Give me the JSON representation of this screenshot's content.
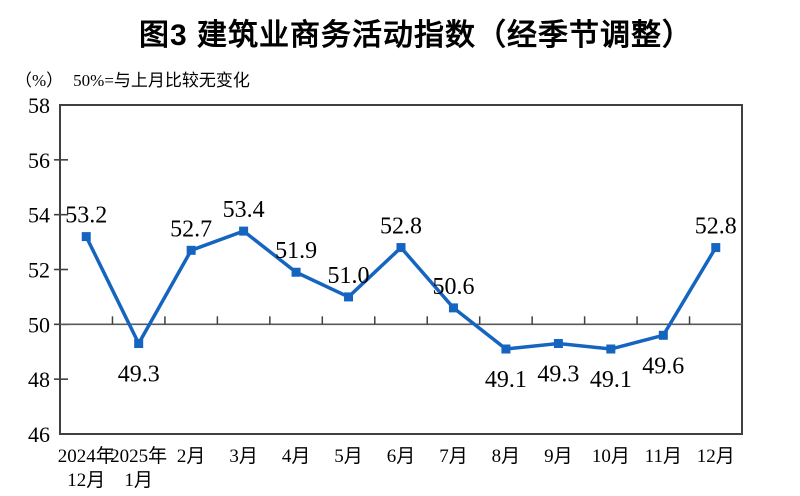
{
  "title": "图3  建筑业商务活动指数（经季节调整）",
  "subtitle": {
    "unit": "（%）",
    "note": "50%=与上月比较无变化"
  },
  "style": {
    "line_color": "#1565C0",
    "marker_color": "#1565C0",
    "axis_color": "#404040",
    "refline_color": "#595959",
    "text_color": "#000000",
    "background": "#ffffff"
  },
  "chart_data": {
    "type": "line",
    "title": "图3  建筑业商务活动指数（经季节调整）",
    "xlabel": "",
    "ylabel": "（%）",
    "categories": [
      "2024年\n12月",
      "2025年\n1月",
      "2月",
      "3月",
      "4月",
      "5月",
      "6月",
      "7月",
      "8月",
      "9月",
      "10月",
      "11月",
      "12月"
    ],
    "series": [
      {
        "name": "建筑业商务活动指数",
        "values": [
          53.2,
          49.3,
          52.7,
          53.4,
          51.9,
          51.0,
          52.8,
          50.6,
          49.1,
          49.3,
          49.1,
          49.6,
          52.8
        ]
      }
    ],
    "label_positions": [
      "above",
      "below",
      "above",
      "above",
      "above",
      "above",
      "above",
      "above",
      "below",
      "below",
      "below",
      "below",
      "above"
    ],
    "ylim": [
      46,
      58
    ],
    "yticks": [
      46,
      48,
      50,
      52,
      54,
      56,
      58
    ],
    "reference_line": 50,
    "grid": false,
    "legend": "none",
    "marker": "square"
  }
}
